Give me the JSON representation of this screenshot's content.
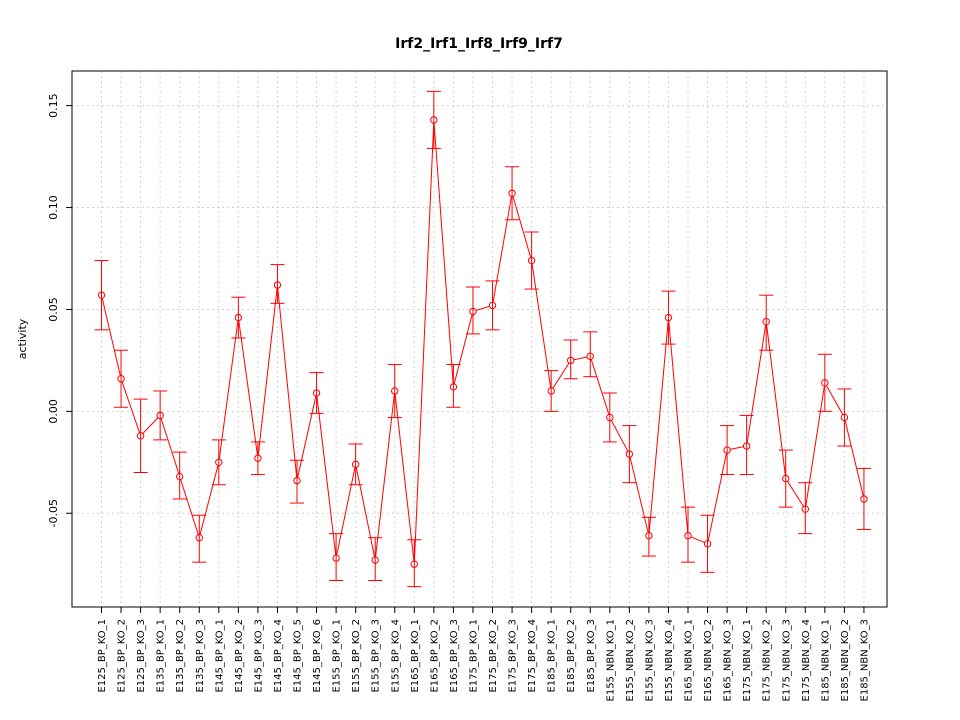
{
  "chart_data": {
    "type": "line",
    "title": "Irf2_Irf1_Irf8_Irf9_Irf7",
    "xlabel": "",
    "ylabel": "activity",
    "ylim": [
      -0.096,
      0.167
    ],
    "yticks": [
      -0.05,
      0.0,
      0.05,
      0.1,
      0.15
    ],
    "ytick_labels": [
      "-0.05",
      "0.00",
      "0.05",
      "0.10",
      "0.15"
    ],
    "grid": true,
    "colors": {
      "series": "#ff0000",
      "grid": "#d3d3d3",
      "axis": "#000000"
    },
    "categories": [
      "E125_BP_KO_1",
      "E125_BP_KO_2",
      "E125_BP_KO_3",
      "E135_BP_KO_1",
      "E135_BP_KO_2",
      "E135_BP_KO_3",
      "E145_BP_KO_1",
      "E145_BP_KO_2",
      "E145_BP_KO_3",
      "E145_BP_KO_4",
      "E145_BP_KO_5",
      "E145_BP_KO_6",
      "E155_BP_KO_1",
      "E155_BP_KO_2",
      "E155_BP_KO_3",
      "E155_BP_KO_4",
      "E165_BP_KO_1",
      "E165_BP_KO_2",
      "E165_BP_KO_3",
      "E175_BP_KO_1",
      "E175_BP_KO_2",
      "E175_BP_KO_3",
      "E175_BP_KO_4",
      "E185_BP_KO_1",
      "E185_BP_KO_2",
      "E185_BP_KO_3",
      "E155_NBN_KO_1",
      "E155_NBN_KO_2",
      "E155_NBN_KO_3",
      "E155_NBN_KO_4",
      "E165_NBN_KO_1",
      "E165_NBN_KO_2",
      "E165_NBN_KO_3",
      "E175_NBN_KO_1",
      "E175_NBN_KO_2",
      "E175_NBN_KO_3",
      "E175_NBN_KO_4",
      "E185_NBN_KO_1",
      "E185_NBN_KO_2",
      "E185_NBN_KO_3"
    ],
    "series": [
      {
        "values": [
          0.057,
          0.016,
          -0.012,
          -0.002,
          -0.032,
          -0.062,
          -0.025,
          0.046,
          -0.023,
          0.062,
          -0.034,
          0.009,
          -0.072,
          -0.026,
          -0.073,
          0.01,
          -0.075,
          0.143,
          0.012,
          0.049,
          0.052,
          0.107,
          0.074,
          0.01,
          0.025,
          0.027,
          -0.003,
          -0.021,
          -0.061,
          0.046,
          -0.061,
          -0.065,
          -0.019,
          -0.017,
          0.044,
          -0.033,
          -0.048,
          0.014,
          -0.003,
          -0.043
        ],
        "error_upper": [
          0.074,
          0.03,
          0.006,
          0.01,
          -0.02,
          -0.051,
          -0.014,
          0.056,
          -0.015,
          0.072,
          -0.024,
          0.019,
          -0.06,
          -0.016,
          -0.062,
          0.023,
          -0.063,
          0.157,
          0.023,
          0.061,
          0.064,
          0.12,
          0.088,
          0.02,
          0.035,
          0.039,
          0.009,
          -0.007,
          -0.052,
          0.059,
          -0.047,
          -0.051,
          -0.007,
          -0.002,
          0.057,
          -0.019,
          -0.035,
          0.028,
          0.011,
          -0.028
        ],
        "error_lower": [
          0.04,
          0.002,
          -0.03,
          -0.014,
          -0.043,
          -0.074,
          -0.036,
          0.036,
          -0.031,
          0.053,
          -0.045,
          -0.001,
          -0.083,
          -0.036,
          -0.083,
          -0.003,
          -0.086,
          0.129,
          0.002,
          0.038,
          0.04,
          0.094,
          0.06,
          0.0,
          0.016,
          0.017,
          -0.015,
          -0.035,
          -0.071,
          0.033,
          -0.074,
          -0.079,
          -0.031,
          -0.031,
          0.03,
          -0.047,
          -0.06,
          0.0,
          -0.017,
          -0.058
        ]
      }
    ]
  }
}
